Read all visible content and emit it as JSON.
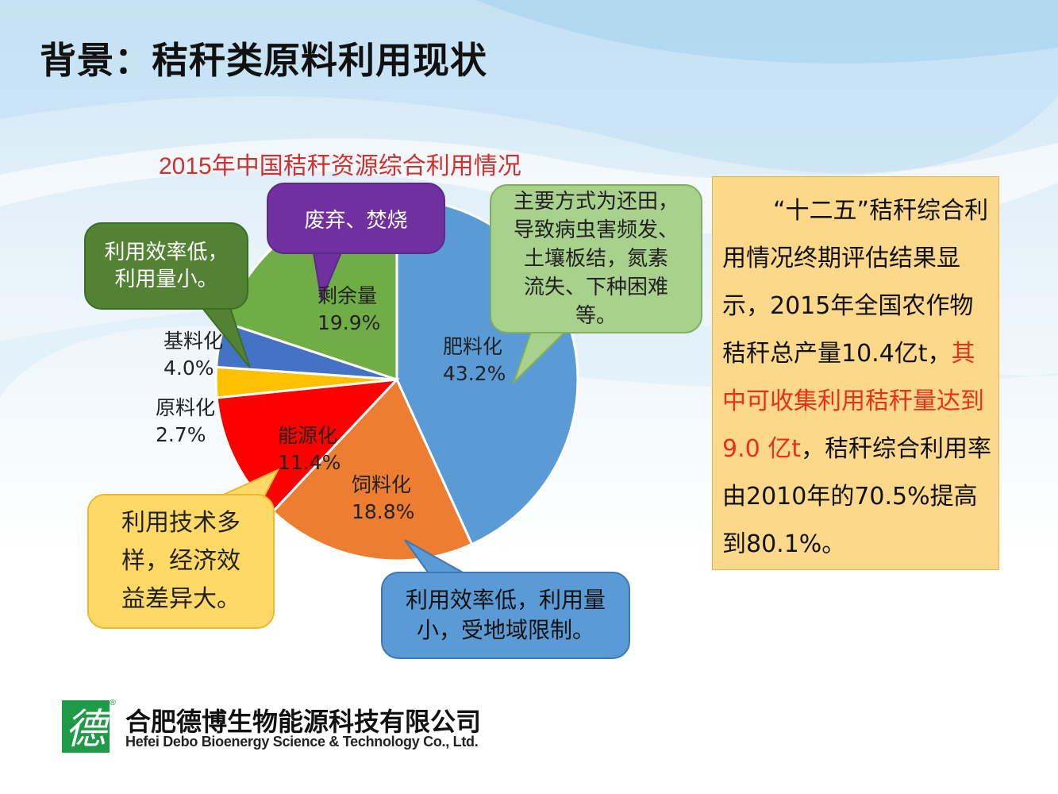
{
  "slide": {
    "title": "背景：秸秆类原料利用现状"
  },
  "chart_data": {
    "type": "pie",
    "title": "2015年中国秸秆资源综合利用情况",
    "slices": [
      {
        "name": "肥料化",
        "value": 43.2,
        "label": "43.2%",
        "color": "#5b9bd5"
      },
      {
        "name": "饲料化",
        "value": 18.8,
        "label": "18.8%",
        "color": "#ed7d31"
      },
      {
        "name": "能源化",
        "value": 11.4,
        "label": "11.4%",
        "color": "#ff0000"
      },
      {
        "name": "原料化",
        "value": 2.7,
        "label": "2.7%",
        "color": "#ffc000"
      },
      {
        "name": "基料化",
        "value": 4.0,
        "label": "4.0%",
        "color": "#4472c4"
      },
      {
        "name": "剩余量",
        "value": 19.9,
        "label": "19.9%",
        "color": "#70ad47"
      }
    ],
    "callouts": [
      {
        "text": "废弃、焚烧",
        "color": "#7030a0"
      },
      {
        "text": "利用效率低，\n利用量小。",
        "color": "#548235"
      },
      {
        "text": "主要方式为还田，\n导致病虫害频发、\n土壤板结，氮素\n流失、下种困难\n等。",
        "color": "#a9d18e"
      },
      {
        "text": "利用技术多\n样，经济效\n益差异大。",
        "color": "#ffd966"
      },
      {
        "text": "利用效率低，利用量\n小，受地域限制。",
        "color": "#5b9bd5"
      }
    ]
  },
  "side_box": {
    "part1": "“十二五”秸秆综合利用情况终期评估结果显示，2015年全国农作物秸秆总产量10.4亿t，",
    "part2_red": "其中可收集利用秸秆量达到9.0 亿t",
    "part3": "，秸秆综合利用率由2010年的70.5%提高到80.1%。",
    "text_color": "#111111",
    "highlight_color": "#e8301c",
    "background": "#fcd88a"
  },
  "logo": {
    "mark_glyph": "德",
    "name_cn": "合肥德博生物能源科技有限公司",
    "name_en": "Hefei Debo Bioenergy Science & Technology Co., Ltd.",
    "registered": "®",
    "color": "#1f9a48"
  }
}
